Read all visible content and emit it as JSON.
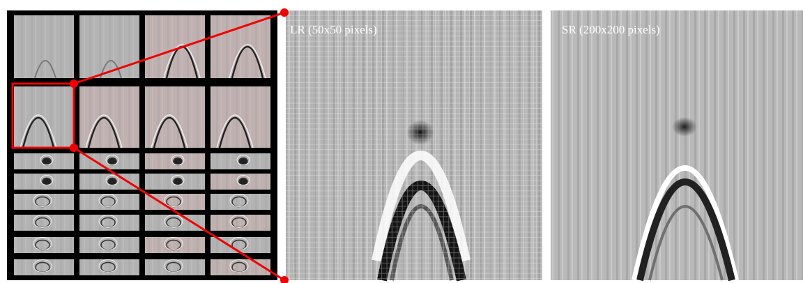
{
  "panels": [
    {
      "label": "LR (50x50 pixels)"
    },
    {
      "label": "SR (200x200 pixels)"
    }
  ]
}
